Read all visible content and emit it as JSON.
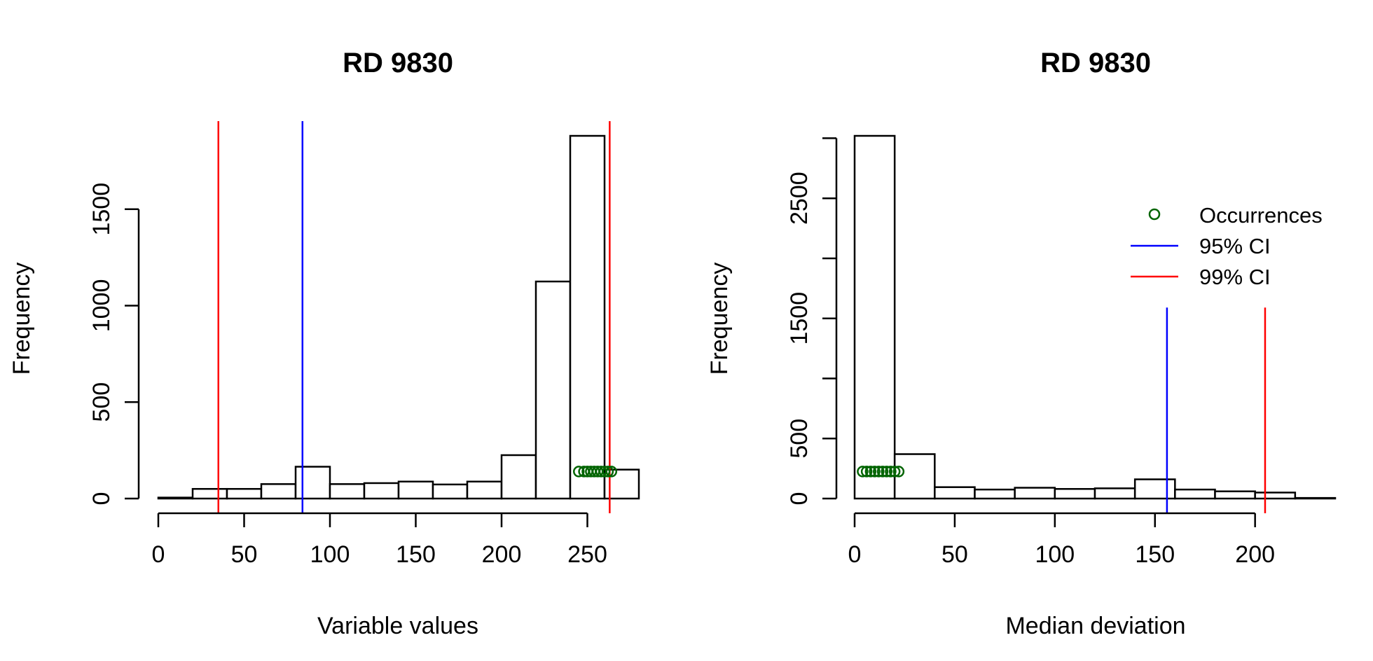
{
  "colors": {
    "ci95": "#0000ff",
    "ci99": "#ff0000",
    "occurrence": "#006400",
    "bar_stroke": "#000000"
  },
  "legend": {
    "placement": "top-right",
    "entries": [
      {
        "label": "Occurrences",
        "symbol": "circle-icon"
      },
      {
        "label": "95% CI",
        "symbol": "line"
      },
      {
        "label": "99% CI",
        "symbol": "line"
      }
    ]
  },
  "chart_data": [
    {
      "type": "histogram",
      "title": "RD 9830",
      "xlabel": "Variable values",
      "ylabel": "Frequency",
      "xlim": [
        0,
        280
      ],
      "ylim": [
        0,
        1880
      ],
      "x_ticks": [
        0,
        50,
        100,
        150,
        200,
        250
      ],
      "y_ticks": [
        0,
        500,
        1000,
        1500
      ],
      "bin_width": 20,
      "bins": [
        {
          "start": 0,
          "end": 20,
          "count": 5
        },
        {
          "start": 20,
          "end": 40,
          "count": 50
        },
        {
          "start": 40,
          "end": 60,
          "count": 50
        },
        {
          "start": 60,
          "end": 80,
          "count": 75
        },
        {
          "start": 80,
          "end": 100,
          "count": 165
        },
        {
          "start": 100,
          "end": 120,
          "count": 75
        },
        {
          "start": 120,
          "end": 140,
          "count": 80
        },
        {
          "start": 140,
          "end": 160,
          "count": 88
        },
        {
          "start": 160,
          "end": 180,
          "count": 73
        },
        {
          "start": 180,
          "end": 200,
          "count": 88
        },
        {
          "start": 200,
          "end": 220,
          "count": 225
        },
        {
          "start": 220,
          "end": 240,
          "count": 1125
        },
        {
          "start": 240,
          "end": 260,
          "count": 1880
        },
        {
          "start": 260,
          "end": 280,
          "count": 150
        }
      ],
      "ci95": [
        84
      ],
      "ci99": [
        35,
        263
      ],
      "occurrences": {
        "y": 140,
        "x": [
          245,
          248,
          250,
          252,
          254,
          256,
          258,
          260,
          262,
          264
        ]
      }
    },
    {
      "type": "histogram",
      "title": "RD 9830",
      "xlabel": "Median deviation",
      "ylabel": "Frequency",
      "xlim": [
        0,
        240
      ],
      "ylim": [
        0,
        3020
      ],
      "x_ticks": [
        0,
        50,
        100,
        150,
        200
      ],
      "y_ticks": [
        0,
        500,
        1500,
        2500
      ],
      "y_minor_ticks": [
        1000,
        2000,
        3000
      ],
      "bin_width": 20,
      "bins": [
        {
          "start": 0,
          "end": 20,
          "count": 3020
        },
        {
          "start": 20,
          "end": 40,
          "count": 370
        },
        {
          "start": 40,
          "end": 60,
          "count": 95
        },
        {
          "start": 60,
          "end": 80,
          "count": 75
        },
        {
          "start": 80,
          "end": 100,
          "count": 90
        },
        {
          "start": 100,
          "end": 120,
          "count": 80
        },
        {
          "start": 120,
          "end": 140,
          "count": 85
        },
        {
          "start": 140,
          "end": 160,
          "count": 160
        },
        {
          "start": 160,
          "end": 180,
          "count": 75
        },
        {
          "start": 180,
          "end": 200,
          "count": 60
        },
        {
          "start": 200,
          "end": 220,
          "count": 50
        },
        {
          "start": 220,
          "end": 240,
          "count": 5
        }
      ],
      "ci95": [
        156
      ],
      "ci99": [
        205
      ],
      "ci_line_top": 1590,
      "occurrences": {
        "y": 225,
        "x": [
          4,
          6,
          8,
          10,
          12,
          14,
          16,
          18,
          20,
          22
        ]
      }
    }
  ]
}
